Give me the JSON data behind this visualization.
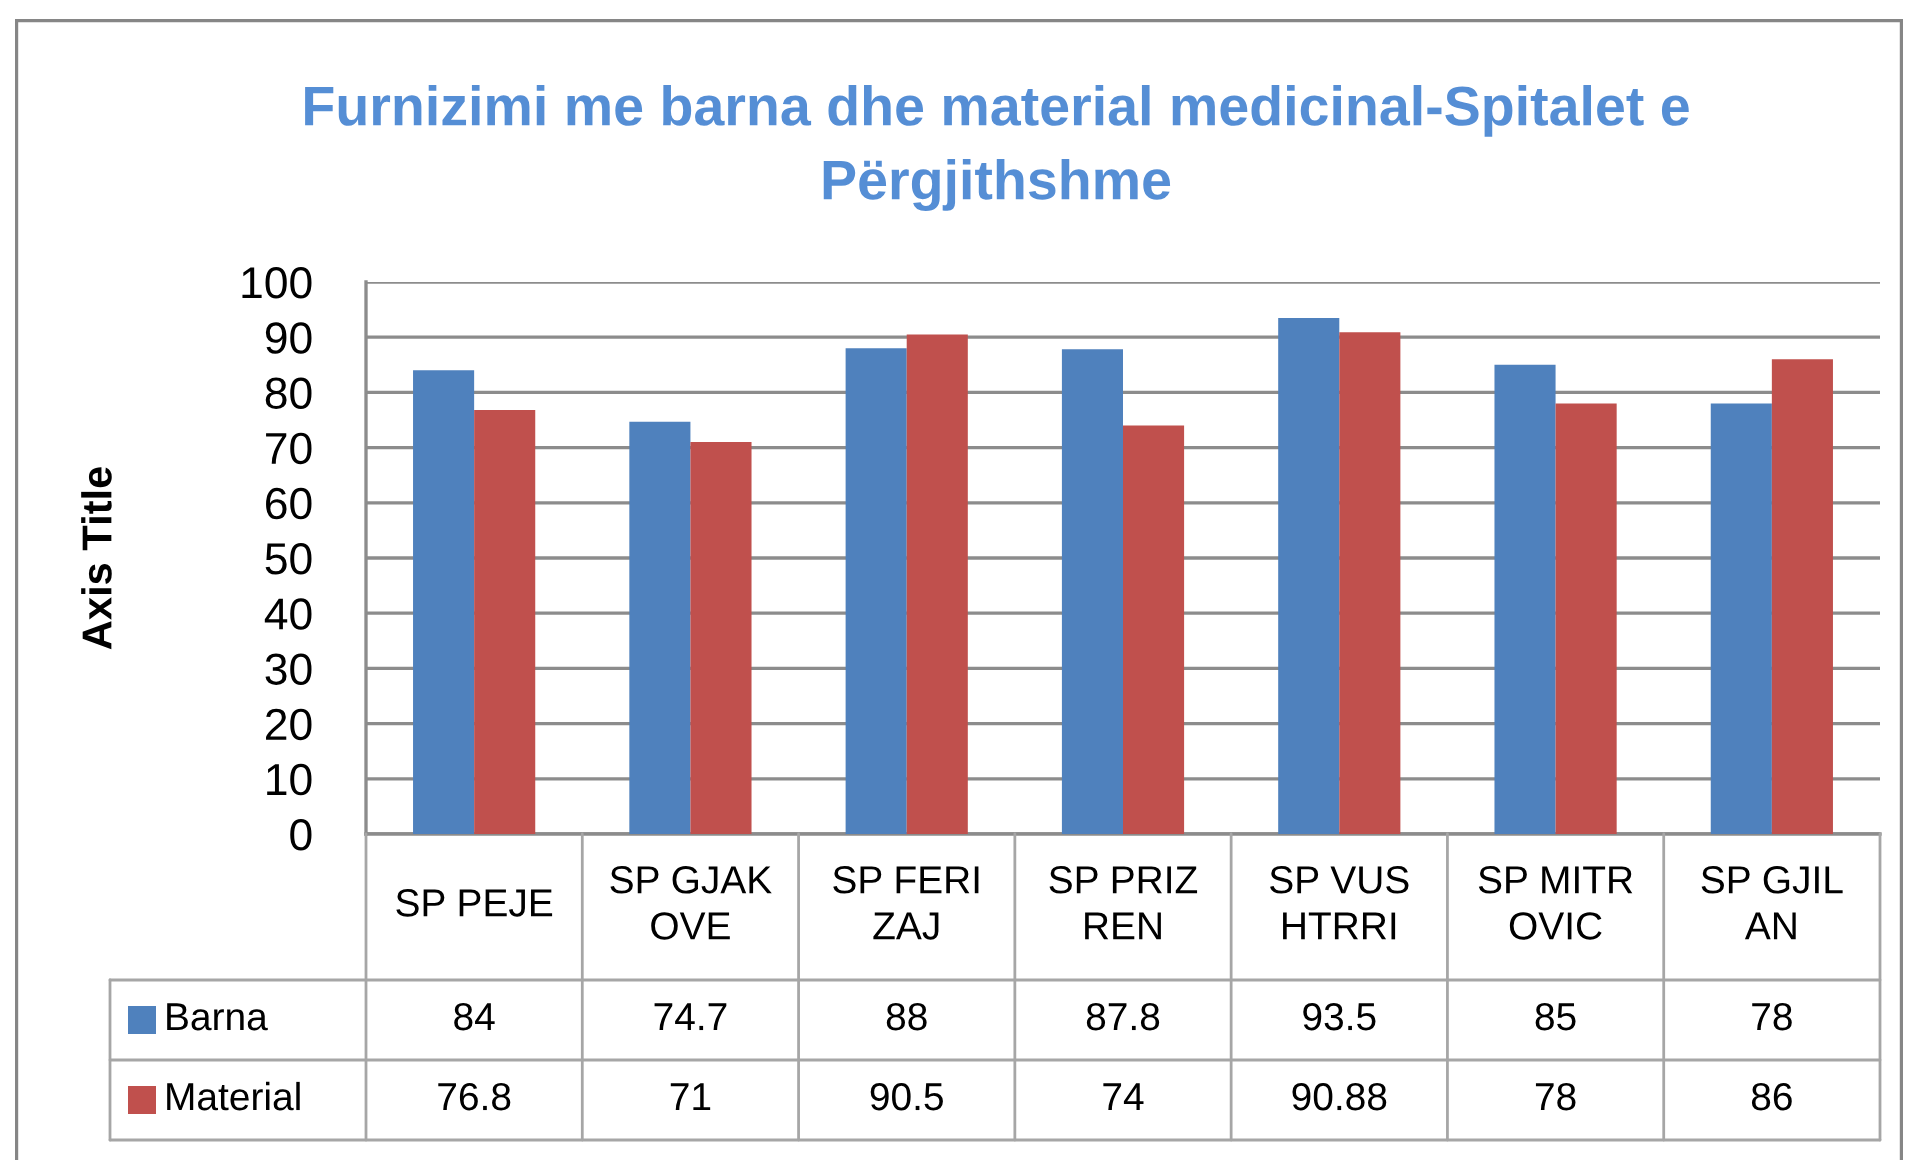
{
  "chart_data": {
    "type": "bar",
    "title": "Furnizimi me barna dhe material medicinal-Spitalet e\nPërgjithshme",
    "ylabel": "Axis Title",
    "categories": [
      "SP PEJE",
      "SP GJAK\nOVE",
      "SP FERI\nZAJ",
      "SP PRIZ\nREN",
      "SP VUS\nHTRRI",
      "SP MITR\nOVIC",
      "SP GJIL\nAN"
    ],
    "series": [
      {
        "name": "Barna",
        "color": "#4f81bd",
        "values": [
          84,
          74.7,
          88,
          87.8,
          93.5,
          85,
          78
        ]
      },
      {
        "name": "Material",
        "color": "#c0504d",
        "values": [
          76.8,
          71,
          90.5,
          74,
          90.88,
          78,
          86
        ]
      }
    ],
    "ylim": [
      0,
      100
    ],
    "yticks": [
      0,
      10,
      20,
      30,
      40,
      50,
      60,
      70,
      80,
      90,
      100
    ],
    "grid": "y",
    "legend": "bottom",
    "data_labels": true
  }
}
